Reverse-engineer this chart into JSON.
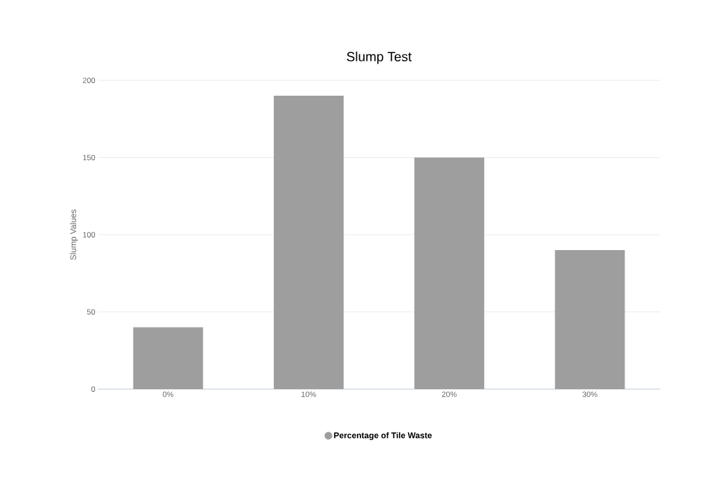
{
  "chart_data": {
    "type": "bar",
    "title": "Slump Test",
    "ylabel": "Slump Values",
    "categories": [
      "0%",
      "10%",
      "20%",
      "30%"
    ],
    "series": [
      {
        "name": "Percentage of Tile Waste",
        "color": "#9e9e9e",
        "values": [
          40,
          190,
          150,
          90
        ]
      }
    ],
    "ylim": [
      0,
      200
    ],
    "yticks": [
      0,
      50,
      100,
      150,
      200
    ],
    "grid": "y",
    "legend": "bottom"
  }
}
